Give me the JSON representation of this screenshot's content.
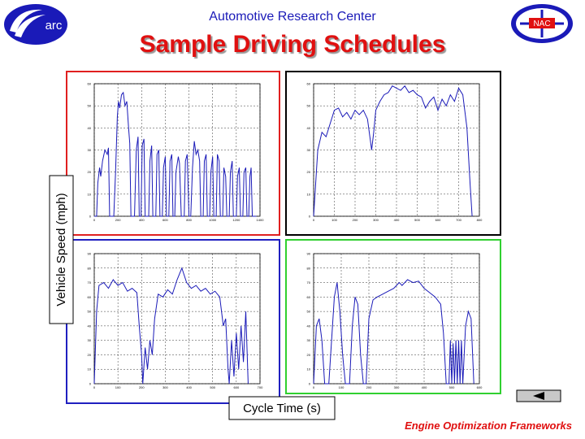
{
  "header": {
    "left_logo": "arc",
    "subtitle": "Automotive Research Center",
    "title": "Sample Driving Schedules",
    "right_logo": "NAC"
  },
  "y_axis_label": "Vehicle Speed (mph)",
  "x_axis_label": "Cycle Time (s)",
  "footer": "Engine Optimization Frameworks",
  "chart_data": [
    {
      "type": "line",
      "grid": true,
      "frame_color": "#e02020",
      "xlim": [
        0,
        1400
      ],
      "xticks": [
        0,
        200,
        400,
        600,
        800,
        1000,
        1200,
        1400
      ],
      "ylim": [
        0,
        60
      ],
      "yticks": [
        0,
        10,
        20,
        30,
        40,
        50,
        60
      ],
      "x": [
        0,
        20,
        30,
        45,
        55,
        70,
        90,
        110,
        120,
        130,
        165,
        180,
        195,
        205,
        215,
        230,
        245,
        260,
        275,
        290,
        300,
        310,
        340,
        355,
        370,
        380,
        395,
        405,
        420,
        430,
        460,
        470,
        485,
        495,
        520,
        530,
        545,
        555,
        575,
        585,
        600,
        610,
        630,
        640,
        655,
        665,
        680,
        690,
        710,
        720,
        735,
        760,
        770,
        785,
        800,
        815,
        830,
        845,
        860,
        875,
        890,
        900,
        920,
        930,
        945,
        955,
        975,
        985,
        1000,
        1010,
        1030,
        1040,
        1055,
        1065,
        1085,
        1095,
        1110,
        1120,
        1140,
        1150,
        1165,
        1175,
        1200,
        1210,
        1225,
        1235,
        1255,
        1265,
        1280,
        1290,
        1305,
        1315,
        1325,
        1335,
        1369
      ],
      "series": [
        {
          "color": "#1a1ab8",
          "values": [
            0,
            0,
            15,
            22,
            18,
            25,
            30,
            28,
            31,
            0,
            0,
            20,
            45,
            52,
            49,
            55,
            56,
            50,
            52,
            40,
            33,
            0,
            0,
            30,
            36,
            0,
            0,
            32,
            35,
            0,
            0,
            25,
            32,
            0,
            0,
            28,
            30,
            0,
            0,
            22,
            27,
            0,
            0,
            25,
            28,
            0,
            0,
            20,
            27,
            24,
            0,
            0,
            25,
            28,
            0,
            0,
            22,
            34,
            28,
            30,
            25,
            0,
            0,
            25,
            28,
            0,
            0,
            20,
            27,
            0,
            0,
            28,
            25,
            0,
            0,
            22,
            18,
            0,
            0,
            20,
            25,
            0,
            0,
            18,
            22,
            0,
            0,
            20,
            22,
            0,
            0,
            18,
            22,
            0,
            0
          ]
        }
      ]
    },
    {
      "type": "line",
      "grid": true,
      "frame_color": "#000000",
      "xlim": [
        0,
        800
      ],
      "xticks": [
        0,
        100,
        200,
        300,
        400,
        500,
        600,
        700,
        800
      ],
      "ylim": [
        0,
        60
      ],
      "yticks": [
        0,
        10,
        20,
        30,
        40,
        50,
        60
      ],
      "x": [
        0,
        10,
        20,
        40,
        60,
        80,
        100,
        120,
        140,
        160,
        180,
        200,
        220,
        240,
        260,
        280,
        290,
        300,
        320,
        340,
        360,
        380,
        400,
        420,
        440,
        460,
        480,
        500,
        520,
        540,
        560,
        580,
        600,
        620,
        640,
        660,
        680,
        700,
        720,
        740,
        755,
        765
      ],
      "series": [
        {
          "color": "#1a1ab8",
          "values": [
            0,
            15,
            30,
            38,
            36,
            42,
            48,
            49,
            45,
            47,
            44,
            48,
            46,
            48,
            44,
            30,
            38,
            48,
            52,
            55,
            56,
            59,
            58,
            57,
            59,
            56,
            57,
            55,
            54,
            49,
            52,
            54,
            48,
            53,
            50,
            55,
            52,
            58,
            55,
            40,
            15,
            0
          ]
        }
      ]
    },
    {
      "type": "line",
      "grid": true,
      "frame_color": "#2020c0",
      "xlim": [
        0,
        700
      ],
      "xticks": [
        0,
        100,
        200,
        300,
        400,
        500,
        600,
        700
      ],
      "ylim": [
        0,
        90
      ],
      "yticks": [
        0,
        10,
        20,
        30,
        40,
        50,
        60,
        70,
        80,
        90
      ],
      "x": [
        0,
        10,
        20,
        40,
        60,
        80,
        100,
        120,
        140,
        160,
        180,
        190,
        200,
        205,
        215,
        225,
        235,
        245,
        255,
        270,
        290,
        310,
        330,
        350,
        370,
        390,
        410,
        430,
        450,
        470,
        490,
        510,
        530,
        545,
        555,
        565,
        570,
        580,
        590,
        600,
        610,
        620,
        630,
        640,
        650
      ],
      "series": [
        {
          "color": "#1a1ab8",
          "values": [
            0,
            50,
            68,
            70,
            66,
            72,
            68,
            70,
            64,
            66,
            63,
            40,
            20,
            0,
            25,
            10,
            30,
            20,
            45,
            62,
            60,
            65,
            62,
            72,
            80,
            70,
            66,
            68,
            64,
            66,
            62,
            64,
            60,
            40,
            45,
            10,
            0,
            30,
            5,
            35,
            10,
            40,
            15,
            50,
            0
          ]
        }
      ]
    },
    {
      "type": "line",
      "grid": true,
      "frame_color": "#30d030",
      "xlim": [
        0,
        600
      ],
      "xticks": [
        0,
        100,
        200,
        300,
        400,
        500,
        600
      ],
      "ylim": [
        0,
        90
      ],
      "yticks": [
        0,
        10,
        20,
        30,
        40,
        50,
        60,
        70,
        80,
        90
      ],
      "x": [
        0,
        10,
        20,
        30,
        40,
        55,
        65,
        75,
        85,
        95,
        105,
        115,
        130,
        140,
        150,
        160,
        170,
        180,
        190,
        200,
        215,
        230,
        250,
        270,
        290,
        300,
        310,
        320,
        340,
        360,
        380,
        400,
        420,
        440,
        460,
        470,
        480,
        490,
        495,
        500,
        505,
        510,
        515,
        520,
        525,
        530,
        535,
        540,
        550,
        560,
        570,
        580
      ],
      "series": [
        {
          "color": "#1a1ab8",
          "values": [
            0,
            40,
            45,
            30,
            0,
            0,
            30,
            60,
            70,
            50,
            20,
            0,
            0,
            40,
            60,
            55,
            20,
            0,
            0,
            45,
            58,
            60,
            62,
            64,
            66,
            68,
            70,
            68,
            72,
            70,
            71,
            66,
            63,
            60,
            55,
            35,
            0,
            0,
            30,
            0,
            28,
            0,
            30,
            0,
            30,
            0,
            30,
            0,
            40,
            50,
            45,
            0
          ]
        }
      ]
    }
  ]
}
